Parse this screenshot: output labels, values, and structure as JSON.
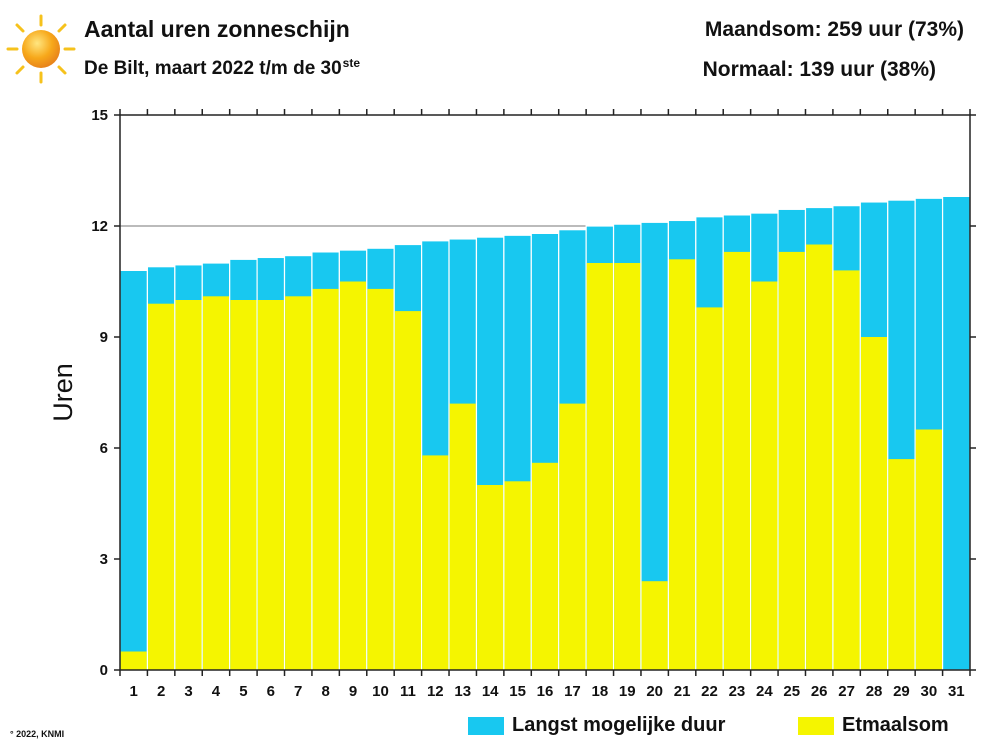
{
  "header": {
    "title": "Aantal uren zonneschijn",
    "subtitle": "De Bilt, maart 2022 t/m de 30",
    "subtitle_sup": "ste",
    "maandsom": "Maandsom: 259 uur (73%)",
    "normaal": "Normaal: 139 uur (38%)"
  },
  "footer": {
    "copyright": "° 2022, KNMI"
  },
  "colors": {
    "possible": "#18c8f0",
    "actual": "#f5f500",
    "grid": "#555555"
  },
  "chart_data": {
    "type": "bar",
    "ylabel": "Uren",
    "xlabel": "",
    "ylim": [
      0,
      15
    ],
    "yticks": [
      0,
      3,
      6,
      9,
      12,
      15
    ],
    "categories": [
      "1",
      "2",
      "3",
      "4",
      "5",
      "6",
      "7",
      "8",
      "9",
      "10",
      "11",
      "12",
      "13",
      "14",
      "15",
      "16",
      "17",
      "18",
      "19",
      "20",
      "21",
      "22",
      "23",
      "24",
      "25",
      "26",
      "27",
      "28",
      "29",
      "30",
      "31"
    ],
    "series": [
      {
        "name": "Langst mogelijke duur",
        "values": [
          10.8,
          10.9,
          10.95,
          11.0,
          11.1,
          11.15,
          11.2,
          11.3,
          11.35,
          11.4,
          11.5,
          11.6,
          11.65,
          11.7,
          11.75,
          11.8,
          11.9,
          12.0,
          12.05,
          12.1,
          12.15,
          12.25,
          12.3,
          12.35,
          12.45,
          12.5,
          12.55,
          12.65,
          12.7,
          12.75,
          12.8
        ]
      },
      {
        "name": "Etmaalsom",
        "values": [
          0.5,
          9.9,
          10.0,
          10.1,
          10.0,
          10.0,
          10.1,
          10.3,
          10.5,
          10.3,
          9.7,
          5.8,
          7.2,
          5.0,
          5.1,
          5.6,
          7.2,
          11.0,
          11.0,
          2.4,
          11.1,
          9.8,
          11.3,
          10.5,
          11.3,
          11.5,
          10.8,
          9.0,
          5.7,
          6.5,
          0
        ]
      }
    ],
    "legend": [
      "Langst mogelijke duur",
      "Etmaalsom"
    ],
    "legend_position": "bottom-right"
  }
}
